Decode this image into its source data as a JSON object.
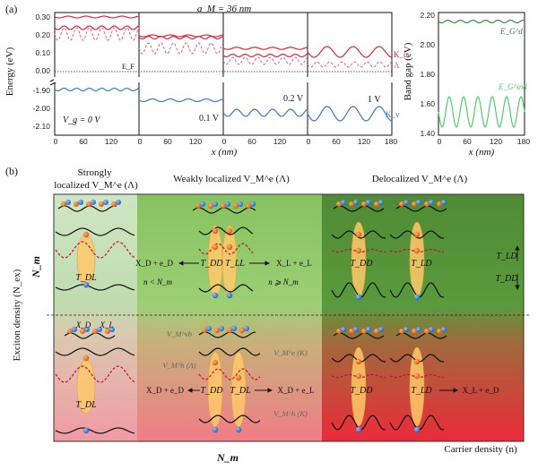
{
  "panel_a": {
    "label": "(a)",
    "title": "a_M = 36 nm",
    "energy_ylabel": "Energy (eV)",
    "gap_ylabel": "Band gap (eV)",
    "xlabel": "x (nm)",
    "ef_label": "E_F",
    "upper_ticks": [
      "0.30",
      "0.20",
      "0.10",
      "0.00"
    ],
    "lower_ticks": [
      "-1.90",
      "-2.00",
      "-2.10"
    ],
    "x_ticks_180": [
      "0",
      "60",
      "120",
      "180"
    ],
    "x_ticks_120": [
      "0",
      "60",
      "120"
    ],
    "voltages": [
      "V_g = 0 V",
      "0.1 V",
      "0.2 V",
      "1 V"
    ],
    "band_labels": [
      "K_c",
      "Λ",
      "K_v"
    ],
    "gap_ticks": [
      "2.20",
      "2.00",
      "1.80",
      "1.60",
      "1.40"
    ],
    "gap_labels": [
      "E_G^d",
      "E_G^ind"
    ],
    "colors": {
      "kc": "#e0213c",
      "lambda": "#ee5a74",
      "kv": "#2f7cc8",
      "egd": "#2e8b44",
      "egind": "#4fce6a"
    }
  },
  "panel_b": {
    "label": "(b)",
    "col_headers": [
      "Strongly localized V_M^e (Λ)",
      "Weakly localized V_M^e (Λ)",
      "Delocalized V_M^e (Λ)"
    ],
    "ylabel": "Exciton density (N_ex)",
    "xlabel": "Carrier density (n)",
    "nm_label": "N_m",
    "labels": {
      "tdl": "T_DL",
      "tdd": "T_DD",
      "tll": "T_LL",
      "tld": "T_LD",
      "xd_ed": "X_D + e_D",
      "xl_el": "X_L + e_L",
      "xd_el": "X_D + e_L",
      "xl_ed": "X_L + e_D",
      "n_less": "n < N_m",
      "n_geq": "n ⩾ N_m",
      "xd": "X_D",
      "xl": "X_L",
      "vmvb": "V_M^vb",
      "vmh_lambda": "V_M^h (Λ)",
      "vme_k": "V_M^e (K)",
      "vmh_k": "V_M^h (K)"
    }
  }
}
